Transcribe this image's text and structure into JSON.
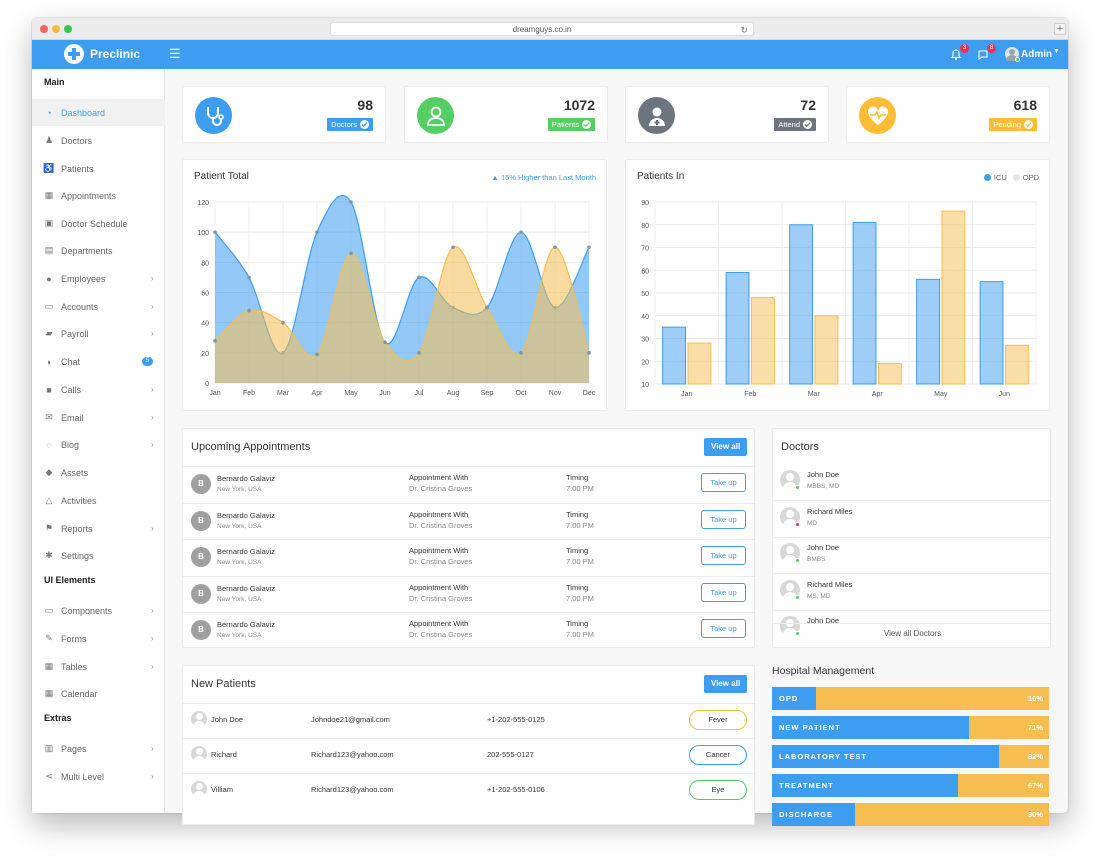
{
  "browser": {
    "url": "dreamguys.co.in"
  },
  "brand": {
    "name": "Preclinic"
  },
  "header": {
    "notif_count": "3",
    "msg_count": "8",
    "user_name": "Admin"
  },
  "sidebar": {
    "sections": [
      "Main",
      "UI Elements",
      "Extras"
    ],
    "items": [
      {
        "label": "Dashboard",
        "icon": "dashboard-icon",
        "active": true
      },
      {
        "label": "Doctors",
        "icon": "doctor-icon"
      },
      {
        "label": "Patients",
        "icon": "wheelchair-icon"
      },
      {
        "label": "Appointments",
        "icon": "calendar-icon"
      },
      {
        "label": "Doctor Schedule",
        "icon": "calendar-check-icon"
      },
      {
        "label": "Departments",
        "icon": "hospital-icon"
      },
      {
        "label": "Employees",
        "icon": "user-icon",
        "submenu": true
      },
      {
        "label": "Accounts",
        "icon": "money-icon",
        "submenu": true
      },
      {
        "label": "Payroll",
        "icon": "book-icon",
        "submenu": true
      },
      {
        "label": "Chat",
        "icon": "comments-icon",
        "badge": "5"
      },
      {
        "label": "Calls",
        "icon": "video-icon",
        "submenu": true
      },
      {
        "label": "Email",
        "icon": "envelope-icon",
        "submenu": true
      },
      {
        "label": "Blog",
        "icon": "comment-icon",
        "submenu": true
      },
      {
        "label": "Assets",
        "icon": "cube-icon"
      },
      {
        "label": "Activities",
        "icon": "bell-icon"
      },
      {
        "label": "Reports",
        "icon": "flag-icon",
        "submenu": true
      },
      {
        "label": "Settings",
        "icon": "cog-icon"
      },
      {
        "label": "Components",
        "icon": "laptop-icon",
        "submenu": true
      },
      {
        "label": "Forms",
        "icon": "edit-icon",
        "submenu": true
      },
      {
        "label": "Tables",
        "icon": "table-icon",
        "submenu": true
      },
      {
        "label": "Calendar",
        "icon": "calendar-icon"
      },
      {
        "label": "Pages",
        "icon": "columns-icon",
        "submenu": true
      },
      {
        "label": "Multi Level",
        "icon": "share-icon",
        "submenu": true
      }
    ]
  },
  "stats": [
    {
      "value": "98",
      "label": "Doctors",
      "color": "#3d9df1",
      "icon": "stethoscope-icon"
    },
    {
      "value": "1072",
      "label": "Patients",
      "color": "#55ce63",
      "icon": "user-icon"
    },
    {
      "value": "72",
      "label": "Attend",
      "color": "#6c757d",
      "icon": "user-md-icon"
    },
    {
      "value": "618",
      "label": "Pending",
      "color": "#ffbc34",
      "icon": "heartbeat-icon"
    }
  ],
  "patient_total": {
    "title": "Patient Total",
    "trend": "15% Higher than Last Month"
  },
  "patients_in": {
    "title": "Patients In",
    "legend": [
      "ICU",
      "OPD"
    ]
  },
  "chart_data": [
    {
      "type": "area",
      "title": "Patient Total",
      "categories": [
        "Jan",
        "Feb",
        "Mar",
        "Apr",
        "May",
        "Jun",
        "Jul",
        "Aug",
        "Sep",
        "Oct",
        "Nov",
        "Dec"
      ],
      "series": [
        {
          "values": [
            100,
            70,
            20,
            100,
            120,
            27,
            70,
            50,
            50,
            100,
            50,
            90
          ],
          "color": "#3d9df1"
        },
        {
          "values": [
            28,
            48,
            40,
            19,
            86,
            27,
            20,
            90,
            50,
            20,
            90,
            20
          ],
          "color": "#f6bd51"
        }
      ],
      "ylim": [
        0,
        120
      ],
      "yticks": [
        0,
        20,
        40,
        60,
        80,
        100,
        120
      ],
      "grid": true
    },
    {
      "type": "bar",
      "title": "Patients In",
      "categories": [
        "Jan",
        "Feb",
        "Mar",
        "Apr",
        "May",
        "Jun"
      ],
      "series": [
        {
          "name": "ICU",
          "values": [
            35,
            59,
            80,
            81,
            56,
            55
          ],
          "color": "#3d9df1"
        },
        {
          "name": "OPD",
          "values": [
            28,
            48,
            40,
            19,
            86,
            27
          ],
          "color": "#f6bd51"
        }
      ],
      "ylim": [
        10,
        90
      ],
      "yticks": [
        10,
        20,
        30,
        40,
        50,
        60,
        70,
        80,
        90
      ],
      "grid": true,
      "legend": "top-right"
    }
  ],
  "appointments": {
    "title": "Upcoming Appointments",
    "view_all": "View all",
    "rows": [
      {
        "initial": "B",
        "name": "Bernardo Galaviz",
        "location": "New York, USA",
        "with_label": "Appointment With",
        "doctor": "Dr. Cristina Groves",
        "timing_label": "Timing",
        "time": "7.00 PM",
        "action": "Take up"
      },
      {
        "initial": "B",
        "name": "Bernardo Galaviz",
        "location": "New York, USA",
        "with_label": "Appointment With",
        "doctor": "Dr. Cristina Groves",
        "timing_label": "Timing",
        "time": "7.00 PM",
        "action": "Take up"
      },
      {
        "initial": "B",
        "name": "Bernardo Galaviz",
        "location": "New York, USA",
        "with_label": "Appointment With",
        "doctor": "Dr. Cristina Groves",
        "timing_label": "Timing",
        "time": "7.00 PM",
        "action": "Take up"
      },
      {
        "initial": "B",
        "name": "Bernardo Galaviz",
        "location": "New York, USA",
        "with_label": "Appointment With",
        "doctor": "Dr. Cristina Groves",
        "timing_label": "Timing",
        "time": "7.00 PM",
        "action": "Take up"
      },
      {
        "initial": "B",
        "name": "Bernardo Galaviz",
        "location": "New York, USA",
        "with_label": "Appointment With",
        "doctor": "Dr. Cristina Groves",
        "timing_label": "Timing",
        "time": "7.00 PM",
        "action": "Take up"
      }
    ]
  },
  "doctors": {
    "title": "Doctors",
    "rows": [
      {
        "name": "John Doe",
        "degree": "MBBS, MD",
        "status_color": "#55ce63"
      },
      {
        "name": "Richard Miles",
        "degree": "MD",
        "status_color": "#f62d51"
      },
      {
        "name": "John Doe",
        "degree": "BMBS",
        "status_color": "#55ce63"
      },
      {
        "name": "Richard Miles",
        "degree": "MS, MD",
        "status_color": "#55ce63"
      },
      {
        "name": "John Doe",
        "degree": "",
        "status_color": "#55ce63"
      }
    ],
    "view_all": "View all Doctors"
  },
  "new_patients": {
    "title": "New Patients",
    "view_all": "View all",
    "rows": [
      {
        "name": "John Doe",
        "email": "Johndoe21@gmail.com",
        "phone": "+1-202-555-0125",
        "condition": "Fever",
        "color": "#ffbc34"
      },
      {
        "name": "Richard",
        "email": "Richard123@yahoo.com",
        "phone": "202-555-0127",
        "condition": "Cancer",
        "color": "#3d9df1"
      },
      {
        "name": "Villiam",
        "email": "Richard123@yahoo.com",
        "phone": "+1-202-555-0106",
        "condition": "Eye",
        "color": "#55ce63"
      }
    ]
  },
  "hospital": {
    "title": "Hospital Management",
    "bars": [
      {
        "label": "OPD",
        "value": "16%",
        "fraction": 0.16
      },
      {
        "label": "NEW PATIENT",
        "value": "71%",
        "fraction": 0.71
      },
      {
        "label": "LABORATORY TEST",
        "value": "82%",
        "fraction": 0.82
      },
      {
        "label": "TREATMENT",
        "value": "67%",
        "fraction": 0.67
      },
      {
        "label": "DISCHARGE",
        "value": "30%",
        "fraction": 0.3
      }
    ]
  }
}
